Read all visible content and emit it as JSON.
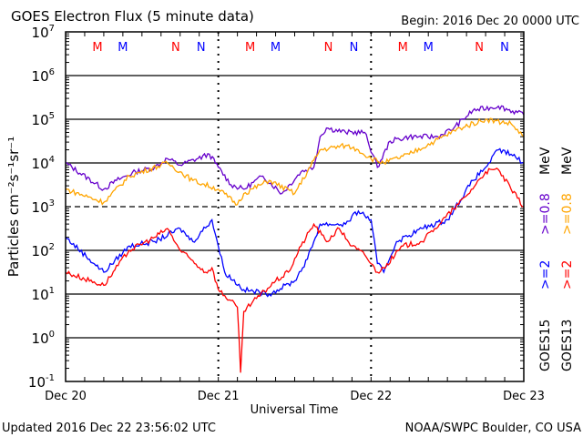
{
  "chart_data": {
    "type": "line",
    "title": "GOES Electron Flux (5 minute data)",
    "begin": "Begin: 2016 Dec 20 0000 UTC",
    "xlabel": "Universal Time",
    "ylabel": "Particles cm⁻²s⁻¹sr⁻¹",
    "yscale": "log",
    "ylim": [
      -1,
      7
    ],
    "xlim_hours": [
      0,
      72
    ],
    "y_ticks": [
      {
        "exp": "7"
      },
      {
        "exp": "6"
      },
      {
        "exp": "5"
      },
      {
        "exp": "4"
      },
      {
        "exp": "3"
      },
      {
        "exp": "2"
      },
      {
        "exp": "1"
      },
      {
        "exp": "0"
      },
      {
        "exp": "-1"
      }
    ],
    "x_ticks": [
      {
        "label": "Dec 20",
        "hour": 0
      },
      {
        "label": "Dec 21",
        "hour": 24
      },
      {
        "label": "Dec 22",
        "hour": 48
      },
      {
        "label": "Dec 23",
        "hour": 72
      }
    ],
    "threshold_log10": 3,
    "markers": [
      {
        "t": "M",
        "hour": 5,
        "color": "#ff0000"
      },
      {
        "t": "M",
        "hour": 9,
        "color": "#0000ff"
      },
      {
        "t": "N",
        "hour": 17.3,
        "color": "#ff0000"
      },
      {
        "t": "N",
        "hour": 21.3,
        "color": "#0000ff"
      },
      {
        "t": "M",
        "hour": 29,
        "color": "#ff0000"
      },
      {
        "t": "M",
        "hour": 33,
        "color": "#0000ff"
      },
      {
        "t": "N",
        "hour": 41.3,
        "color": "#ff0000"
      },
      {
        "t": "N",
        "hour": 45.3,
        "color": "#0000ff"
      },
      {
        "t": "M",
        "hour": 53,
        "color": "#ff0000"
      },
      {
        "t": "M",
        "hour": 57,
        "color": "#0000ff"
      },
      {
        "t": "N",
        "hour": 65,
        "color": "#ff0000"
      },
      {
        "t": "N",
        "hour": 69,
        "color": "#0000ff"
      }
    ],
    "series": [
      {
        "name": "GOES15 >=0.8 MeV",
        "color": "#6600cc",
        "hours": [
          0,
          6,
          8,
          11,
          14,
          16,
          18,
          22.6,
          24,
          26,
          28,
          31,
          34,
          37,
          39,
          40,
          41,
          44,
          47,
          49,
          51,
          54,
          58.5,
          61,
          64,
          68,
          72
        ],
        "log10": [
          4.0,
          3.4,
          3.6,
          3.8,
          3.9,
          4.1,
          3.95,
          4.2,
          3.9,
          3.5,
          3.4,
          3.7,
          3.3,
          3.8,
          3.9,
          4.6,
          4.8,
          4.7,
          4.7,
          3.9,
          4.5,
          4.6,
          4.6,
          4.8,
          5.2,
          5.3,
          5.1
        ]
      },
      {
        "name": "GOES13 >=0.8 MeV",
        "color": "#ffa500",
        "hours": [
          0,
          6,
          10,
          16,
          20,
          24,
          27,
          28,
          32,
          36,
          40,
          44,
          46,
          48,
          50,
          54,
          58,
          62,
          66,
          70,
          72
        ],
        "log10": [
          3.4,
          3.1,
          3.7,
          4.0,
          3.6,
          3.4,
          3.05,
          3.3,
          3.6,
          3.3,
          4.3,
          4.4,
          4.3,
          4.1,
          4.0,
          4.2,
          4.5,
          4.8,
          5.0,
          4.9,
          4.6
        ]
      },
      {
        "name": "GOES15 >=2 MeV",
        "color": "#0000ff",
        "hours": [
          0,
          6,
          10,
          14,
          18,
          20,
          23,
          25,
          28,
          32,
          36,
          38,
          40,
          44,
          46,
          48,
          49,
          50,
          52,
          56,
          60,
          64,
          66,
          68,
          70,
          72
        ],
        "log10": [
          2.3,
          1.5,
          2.1,
          2.2,
          2.5,
          2.2,
          2.7,
          1.5,
          1.1,
          1.0,
          1.3,
          1.8,
          2.6,
          2.6,
          2.9,
          2.7,
          1.7,
          1.5,
          2.2,
          2.5,
          2.7,
          3.6,
          3.9,
          4.3,
          4.2,
          4.0
        ]
      },
      {
        "name": "GOES13 >=2 MeV",
        "color": "#ff0000",
        "hours": [
          0,
          6,
          10,
          14,
          16,
          18,
          22,
          23,
          24,
          27,
          27.5,
          28,
          30,
          33,
          35,
          37,
          39,
          41,
          43,
          45,
          47,
          49,
          50,
          53,
          56,
          58,
          61,
          63,
          66,
          68,
          70,
          72
        ],
        "log10": [
          1.5,
          1.2,
          2.0,
          2.3,
          2.5,
          2.0,
          1.5,
          1.6,
          1.1,
          0.7,
          -0.8,
          0.6,
          0.9,
          1.3,
          1.5,
          2.1,
          2.6,
          2.2,
          2.5,
          2.1,
          1.9,
          1.5,
          1.6,
          2.1,
          2.2,
          2.5,
          2.95,
          3.25,
          3.8,
          3.85,
          3.4,
          3.0
        ]
      }
    ],
    "legend": [
      {
        "sat": "GOES15",
        "low": ">=2",
        "high": ">=0.8",
        "unit": "MeV",
        "low_color": "#0000ff",
        "high_color": "#6600cc"
      },
      {
        "sat": "GOES13",
        "low": ">=2",
        "high": ">=0.8",
        "unit": "MeV",
        "low_color": "#ff0000",
        "high_color": "#ffa500"
      }
    ],
    "legend_placement": "right"
  },
  "footer": {
    "updated": "Updated 2016 Dec 22 23:56:02 UTC",
    "source": "NOAA/SWPC Boulder, CO USA"
  }
}
